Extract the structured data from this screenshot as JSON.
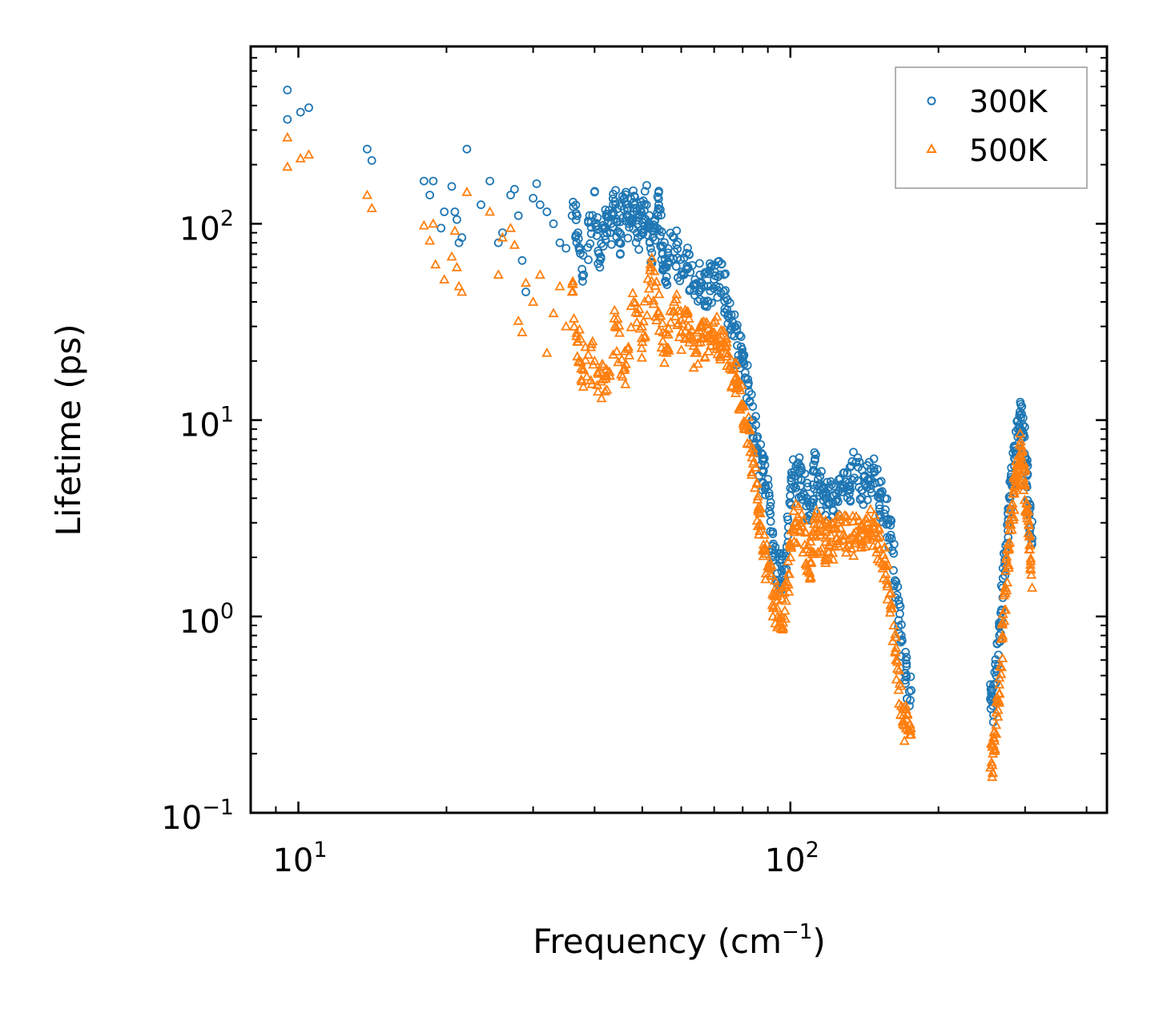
{
  "chart_data": {
    "type": "scatter",
    "title": "",
    "xlabel": "Frequency (cm",
    "xlabel_sup": "−1",
    "xlabel_end": ")",
    "ylabel": "Lifetime (ps)",
    "xscale": "log",
    "yscale": "log",
    "xlim": [
      8,
      440
    ],
    "ylim": [
      0.1,
      800
    ],
    "legend_position": "top-right",
    "x_ticks": [
      {
        "value": 10,
        "base": "10",
        "exp": "1"
      },
      {
        "value": 100,
        "base": "10",
        "exp": "2"
      }
    ],
    "y_ticks": [
      {
        "value": 0.1,
        "base": "10",
        "exp": "−1"
      },
      {
        "value": 1,
        "base": "10",
        "exp": "0"
      },
      {
        "value": 10,
        "base": "10",
        "exp": "1"
      },
      {
        "value": 100,
        "base": "10",
        "exp": "2"
      }
    ],
    "colors": {
      "series_300K": "#1f77b4",
      "series_500K": "#ff7f0e"
    },
    "series": [
      {
        "name": "300K",
        "marker": "circle",
        "color": "#1f77b4",
        "points": [
          [
            9.5,
            480
          ],
          [
            9.5,
            340
          ],
          [
            10.1,
            370
          ],
          [
            10.5,
            390
          ],
          [
            13.8,
            240
          ],
          [
            14.1,
            210
          ],
          [
            18.0,
            165
          ],
          [
            18.5,
            140
          ],
          [
            18.8,
            165
          ],
          [
            19.5,
            95
          ],
          [
            19.8,
            115
          ],
          [
            20.5,
            155
          ],
          [
            20.8,
            115
          ],
          [
            21.0,
            105
          ],
          [
            21.2,
            80
          ],
          [
            21.5,
            85
          ],
          [
            22.0,
            240
          ],
          [
            23.5,
            125
          ],
          [
            24.5,
            165
          ],
          [
            25.5,
            80
          ],
          [
            26.0,
            90
          ],
          [
            27.0,
            140
          ],
          [
            27.5,
            150
          ],
          [
            28.0,
            110
          ],
          [
            28.5,
            65
          ],
          [
            29.0,
            45
          ],
          [
            30.0,
            135
          ],
          [
            30.5,
            160
          ],
          [
            31.0,
            125
          ],
          [
            32.0,
            115
          ],
          [
            33.0,
            100
          ],
          [
            34.0,
            80
          ],
          [
            35.0,
            75
          ],
          [
            36.0,
            110
          ],
          [
            37.0,
            90
          ],
          [
            38.0,
            55
          ],
          [
            40.0,
            145
          ],
          [
            41.0,
            60
          ],
          [
            42.0,
            95
          ],
          [
            43.0,
            90
          ],
          [
            44.0,
            130
          ],
          [
            45.0,
            80
          ],
          [
            46.0,
            135
          ],
          [
            47.0,
            100
          ],
          [
            48.0,
            120
          ],
          [
            49.0,
            85
          ],
          [
            50.0,
            110
          ],
          [
            51.0,
            125
          ],
          [
            52.0,
            75
          ],
          [
            53.0,
            95
          ],
          [
            54.0,
            125
          ],
          [
            55.0,
            70
          ],
          [
            56.0,
            60
          ],
          [
            58.0,
            85
          ],
          [
            60.0,
            55
          ],
          [
            62.0,
            60
          ],
          [
            64.0,
            52
          ],
          [
            66.0,
            50
          ],
          [
            68.0,
            48
          ],
          [
            70.0,
            52
          ],
          [
            72.0,
            55
          ],
          [
            74.0,
            42
          ],
          [
            76.0,
            30
          ],
          [
            78.0,
            24
          ],
          [
            80.0,
            20
          ],
          [
            82.0,
            15
          ],
          [
            84.0,
            10
          ],
          [
            86.0,
            7
          ],
          [
            88.0,
            5.5
          ],
          [
            90.0,
            5
          ],
          [
            92.0,
            2.2
          ],
          [
            94.0,
            1.8
          ],
          [
            96.0,
            1.7
          ],
          [
            98.0,
            2.1
          ],
          [
            100.0,
            4.5
          ],
          [
            102.0,
            5.5
          ],
          [
            105.0,
            5
          ],
          [
            108.0,
            4
          ],
          [
            110.0,
            3.3
          ],
          [
            112.0,
            5.5
          ],
          [
            115.0,
            4.4
          ],
          [
            118.0,
            4
          ],
          [
            120.0,
            3.8
          ],
          [
            124.0,
            4.2
          ],
          [
            128.0,
            4.5
          ],
          [
            132.0,
            4.6
          ],
          [
            136.0,
            6.1
          ],
          [
            140.0,
            4.4
          ],
          [
            144.0,
            5.0
          ],
          [
            148.0,
            5.5
          ],
          [
            152.0,
            4.0
          ],
          [
            156.0,
            3.5
          ],
          [
            160.0,
            2.6
          ],
          [
            164.0,
            1.5
          ],
          [
            168.0,
            0.8
          ],
          [
            172.0,
            0.5
          ],
          [
            176.0,
            0.42
          ],
          [
            255.0,
            0.45
          ],
          [
            258.0,
            0.35
          ],
          [
            262.0,
            0.5
          ],
          [
            266.0,
            0.8
          ],
          [
            270.0,
            1.4
          ],
          [
            274.0,
            2.3
          ],
          [
            278.0,
            3.5
          ],
          [
            282.0,
            5
          ],
          [
            286.0,
            7
          ],
          [
            290.0,
            9
          ],
          [
            294.0,
            10.3
          ],
          [
            298.0,
            8.5
          ],
          [
            302.0,
            6
          ],
          [
            306.0,
            3.5
          ],
          [
            310.0,
            2.5
          ]
        ]
      },
      {
        "name": "500K",
        "marker": "triangle",
        "color": "#ff7f0e",
        "points": [
          [
            9.5,
            275
          ],
          [
            9.5,
            195
          ],
          [
            10.1,
            215
          ],
          [
            10.5,
            225
          ],
          [
            13.8,
            140
          ],
          [
            14.1,
            120
          ],
          [
            18.0,
            98
          ],
          [
            18.5,
            82
          ],
          [
            18.8,
            100
          ],
          [
            19.0,
            62
          ],
          [
            19.8,
            52
          ],
          [
            20.5,
            68
          ],
          [
            20.8,
            92
          ],
          [
            21.0,
            60
          ],
          [
            21.2,
            48
          ],
          [
            21.5,
            45
          ],
          [
            22.0,
            145
          ],
          [
            24.5,
            115
          ],
          [
            25.5,
            55
          ],
          [
            26.0,
            85
          ],
          [
            27.0,
            95
          ],
          [
            27.5,
            78
          ],
          [
            28.0,
            32
          ],
          [
            28.5,
            28
          ],
          [
            29.0,
            50
          ],
          [
            30.0,
            40
          ],
          [
            31.0,
            55
          ],
          [
            32.0,
            22
          ],
          [
            33.0,
            35
          ],
          [
            34.0,
            48
          ],
          [
            35.0,
            30
          ],
          [
            36.0,
            45
          ],
          [
            37.0,
            25
          ],
          [
            38.0,
            18
          ],
          [
            40.0,
            20
          ],
          [
            42.0,
            14
          ],
          [
            44.0,
            30
          ],
          [
            46.0,
            18
          ],
          [
            48.0,
            40
          ],
          [
            50.0,
            25
          ],
          [
            52.0,
            60
          ],
          [
            54.0,
            35
          ],
          [
            56.0,
            22
          ],
          [
            58.0,
            40
          ],
          [
            60.0,
            28
          ],
          [
            62.0,
            30
          ],
          [
            64.0,
            22
          ],
          [
            66.0,
            26
          ],
          [
            68.0,
            27
          ],
          [
            70.0,
            28
          ],
          [
            72.0,
            24
          ],
          [
            74.0,
            22
          ],
          [
            76.0,
            18
          ],
          [
            78.0,
            15
          ],
          [
            80.0,
            12
          ],
          [
            82.0,
            9
          ],
          [
            84.0,
            6
          ],
          [
            86.0,
            3.5
          ],
          [
            88.0,
            2.2
          ],
          [
            90.0,
            1.8
          ],
          [
            92.0,
            1.3
          ],
          [
            94.0,
            1.1
          ],
          [
            96.0,
            1.0
          ],
          [
            98.0,
            1.2
          ],
          [
            100.0,
            2.0
          ],
          [
            102.0,
            3.0
          ],
          [
            105.0,
            3.0
          ],
          [
            108.0,
            2.2
          ],
          [
            110.0,
            1.9
          ],
          [
            112.0,
            2.8
          ],
          [
            115.0,
            2.6
          ],
          [
            118.0,
            2.4
          ],
          [
            120.0,
            2.3
          ],
          [
            124.0,
            2.5
          ],
          [
            128.0,
            2.6
          ],
          [
            132.0,
            2.5
          ],
          [
            136.0,
            2.7
          ],
          [
            140.0,
            2.4
          ],
          [
            144.0,
            3.2
          ],
          [
            148.0,
            2.8
          ],
          [
            152.0,
            2.2
          ],
          [
            156.0,
            1.8
          ],
          [
            160.0,
            1.1
          ],
          [
            164.0,
            0.6
          ],
          [
            168.0,
            0.35
          ],
          [
            172.0,
            0.27
          ],
          [
            176.0,
            0.25
          ],
          [
            255.0,
            0.17
          ],
          [
            258.0,
            0.2
          ],
          [
            262.0,
            0.28
          ],
          [
            266.0,
            0.45
          ],
          [
            270.0,
            0.8
          ],
          [
            274.0,
            1.4
          ],
          [
            278.0,
            2.2
          ],
          [
            282.0,
            3.3
          ],
          [
            286.0,
            4.5
          ],
          [
            290.0,
            6
          ],
          [
            294.0,
            7.8
          ],
          [
            298.0,
            5.5
          ],
          [
            302.0,
            3.8
          ],
          [
            306.0,
            2.2
          ],
          [
            310.0,
            1.4
          ]
        ]
      }
    ]
  }
}
